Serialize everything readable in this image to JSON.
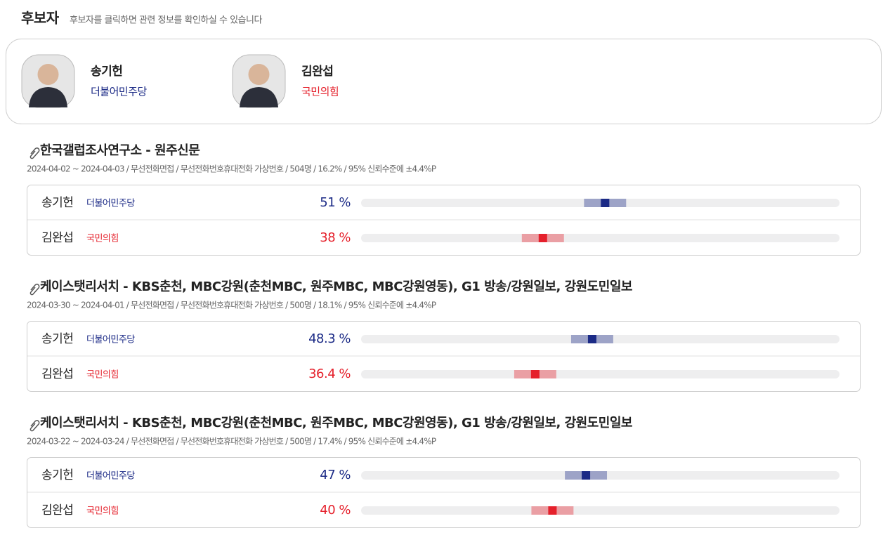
{
  "header": {
    "title": "후보자",
    "subtitle": "후보자를 클릭하면 관련 정보를 확인하실 수 있습니다"
  },
  "candidates": [
    {
      "name": "송기헌",
      "party": "더불어민주당",
      "color": "#1b2a86"
    },
    {
      "name": "김완섭",
      "party": "국민의힘",
      "color": "#e5202b"
    }
  ],
  "xlim": [
    0,
    100
  ],
  "polls": [
    {
      "title": "한국갤럽조사연구소 - 원주신문",
      "meta": "2024-04-02 ~ 2024-04-03 / 무선전화면접 / 무선전화번호휴대전화 가상번호 / 504명 / 16.2% / 95% 신뢰수준에 ±4.4%P",
      "margin": 4.4,
      "results": [
        {
          "name": "송기헌",
          "party": "더불어민주당",
          "value": 51,
          "value_label": "51 %"
        },
        {
          "name": "김완섭",
          "party": "국민의힘",
          "value": 38,
          "value_label": "38 %"
        }
      ]
    },
    {
      "title": "케이스탯리서치 - KBS춘천, MBC강원(춘천MBC, 원주MBC, MBC강원영동), G1 방송/강원일보, 강원도민일보",
      "meta": "2024-03-30 ~ 2024-04-01 / 무선전화면접 / 무선전화번호휴대전화 가상번호 / 500명 / 18.1% / 95% 신뢰수준에 ±4.4%P",
      "margin": 4.4,
      "results": [
        {
          "name": "송기헌",
          "party": "더불어민주당",
          "value": 48.3,
          "value_label": "48.3 %"
        },
        {
          "name": "김완섭",
          "party": "국민의힘",
          "value": 36.4,
          "value_label": "36.4 %"
        }
      ]
    },
    {
      "title": "케이스탯리서치 - KBS춘천, MBC강원(춘천MBC, 원주MBC, MBC강원영동), G1 방송/강원일보, 강원도민일보",
      "meta": "2024-03-22 ~ 2024-03-24 / 무선전화면접 / 무선전화번호휴대전화 가상번호 / 500명 / 17.4% / 95% 신뢰수준에 ±4.4%P",
      "margin": 4.4,
      "results": [
        {
          "name": "송기헌",
          "party": "더불어민주당",
          "value": 47,
          "value_label": "47 %"
        },
        {
          "name": "김완섭",
          "party": "국민의힘",
          "value": 40,
          "value_label": "40 %"
        }
      ]
    }
  ]
}
